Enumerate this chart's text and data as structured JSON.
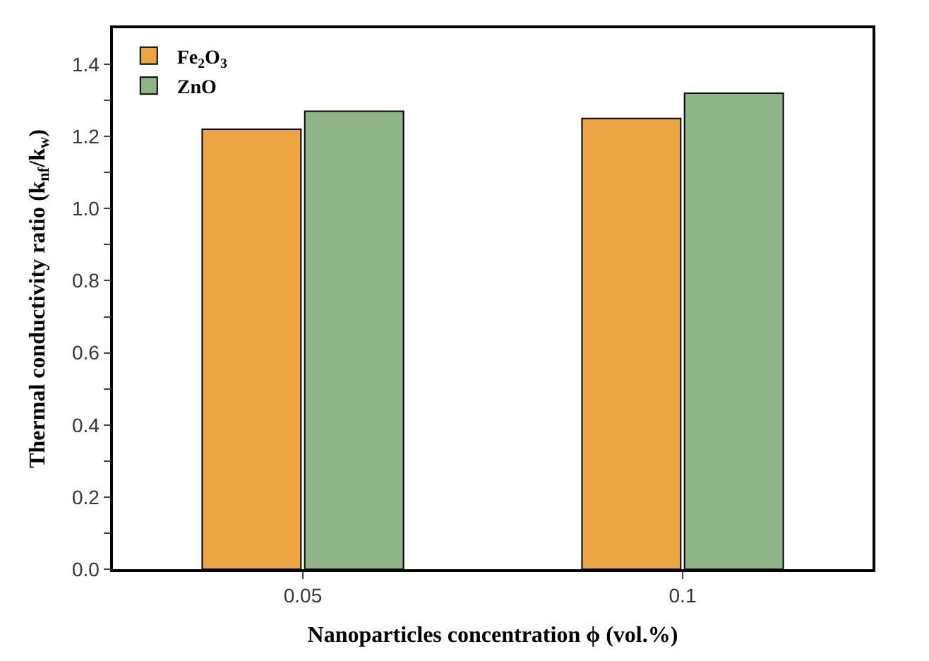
{
  "chart_data": {
    "type": "bar",
    "categories": [
      "0.05",
      "0.1"
    ],
    "series": [
      {
        "name": "Fe$_{2}$O$_{3}$",
        "color": "#eba545",
        "values": [
          1.22,
          1.25
        ]
      },
      {
        "name": "ZnO",
        "color": "#8fb487",
        "values": [
          1.27,
          1.32
        ]
      }
    ],
    "xlabel": "Nanoparticles concentration ϕ (vol.%)",
    "ylabel": "Thermal conductivity ratio (k$_{nf}$/k$_{w}$)",
    "ylim": [
      0,
      1.5
    ],
    "yticks": [
      {
        "value": 0,
        "label": "0.0"
      },
      {
        "value": 0.1,
        "label": null
      },
      {
        "value": 0.2,
        "label": "0.2"
      },
      {
        "value": 0.3,
        "label": null
      },
      {
        "value": 0.4,
        "label": "0.4"
      },
      {
        "value": 0.5,
        "label": null
      },
      {
        "value": 0.6,
        "label": "0.6"
      },
      {
        "value": 0.7,
        "label": null
      },
      {
        "value": 0.8,
        "label": "0.8"
      },
      {
        "value": 0.9,
        "label": null
      },
      {
        "value": 1.0,
        "label": "1.0"
      },
      {
        "value": 1.1,
        "label": null
      },
      {
        "value": 1.2,
        "label": "1.2"
      },
      {
        "value": 1.3,
        "label": null
      },
      {
        "value": 1.4,
        "label": "1.4"
      }
    ],
    "legend": "top left"
  }
}
